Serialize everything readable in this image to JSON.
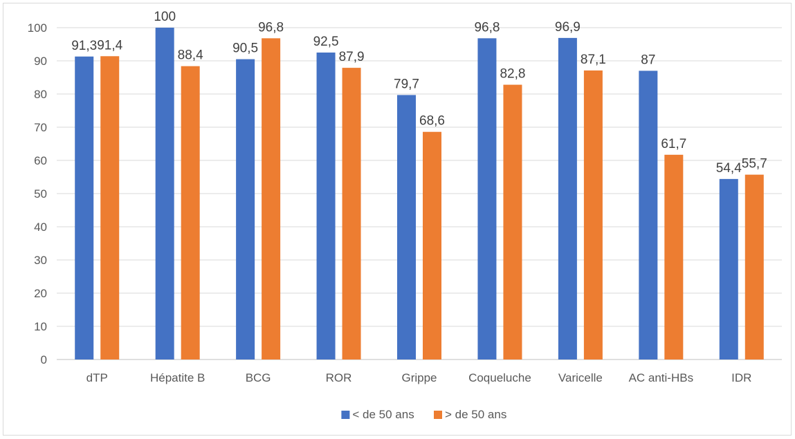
{
  "chart_data": {
    "type": "bar",
    "categories": [
      "dTP",
      "Hépatite B",
      "BCG",
      "ROR",
      "Grippe",
      "Coqueluche",
      "Varicelle",
      "AC anti-HBs",
      "IDR"
    ],
    "series": [
      {
        "name": "< de 50 ans",
        "color": "#4472C4",
        "values": [
          91.3,
          100,
          90.5,
          92.5,
          79.7,
          96.8,
          96.9,
          87,
          54.4
        ],
        "labels": [
          "91,3",
          "100",
          "90,5",
          "92,5",
          "79,7",
          "96,8",
          "96,9",
          "87",
          "54,4"
        ]
      },
      {
        "name": "> de 50 ans",
        "color": "#ED7D31",
        "values": [
          91.4,
          88.4,
          96.8,
          87.9,
          68.6,
          82.8,
          87.1,
          61.7,
          55.7
        ],
        "labels": [
          "91,4",
          "88,4",
          "96,8",
          "87,9",
          "68,6",
          "82,8",
          "87,1",
          "61,7",
          "55,7"
        ]
      }
    ],
    "yticks": [
      "0",
      "10",
      "20",
      "30",
      "40",
      "50",
      "60",
      "70",
      "80",
      "90",
      "100"
    ],
    "ylim": [
      0,
      100
    ],
    "grid": true,
    "legend": "bottom-center",
    "title": "",
    "xlabel": "",
    "ylabel": ""
  }
}
